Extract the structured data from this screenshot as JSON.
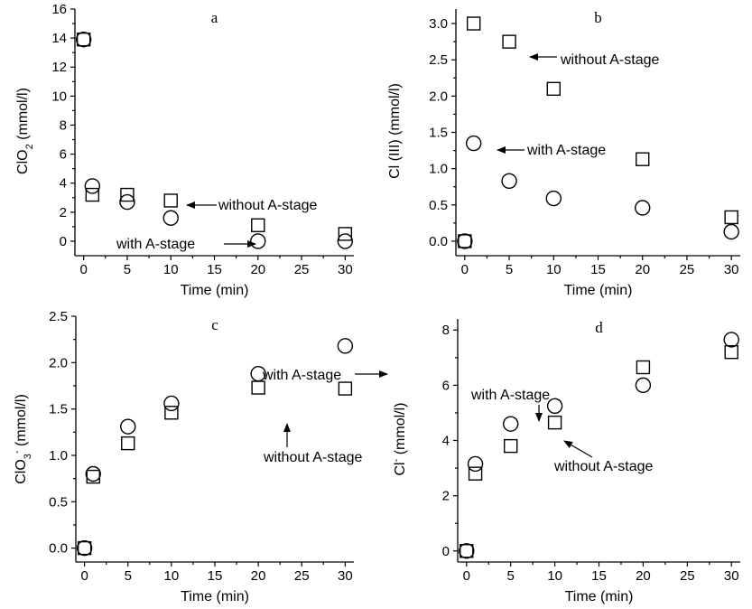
{
  "chart_data": [
    {
      "type": "scatter",
      "panel_label": "a",
      "xlabel": "Time (min)",
      "ylabel": "ClO",
      "ylabel_sub": "2",
      "ylabel_tail": " (mmol/l)",
      "xlim": [
        -1,
        31
      ],
      "ylim": [
        -1,
        16
      ],
      "xticks": [
        0,
        5,
        10,
        15,
        20,
        25,
        30
      ],
      "yticks": [
        0,
        2,
        4,
        6,
        8,
        10,
        12,
        14,
        16
      ],
      "series": [
        {
          "name": "without A-stage",
          "marker": "square",
          "x": [
            0,
            1,
            5,
            10,
            20,
            30
          ],
          "y": [
            13.9,
            3.2,
            3.2,
            2.8,
            1.1,
            0.5
          ]
        },
        {
          "name": "with A-stage",
          "marker": "circle",
          "x": [
            0,
            1,
            5,
            10,
            20,
            30
          ],
          "y": [
            13.9,
            3.8,
            2.7,
            1.6,
            0.0,
            0.0
          ]
        }
      ],
      "annotations": [
        {
          "text": "without A-stage"
        },
        {
          "text": "with A-stage"
        }
      ]
    },
    {
      "type": "scatter",
      "panel_label": "b",
      "xlabel": "Time (min)",
      "ylabel": "Cl (III) (mmol/l)",
      "xlim": [
        -1,
        31
      ],
      "ylim": [
        -0.2,
        3.2
      ],
      "xticks": [
        0,
        5,
        10,
        15,
        20,
        25,
        30
      ],
      "yticks": [
        0.0,
        0.5,
        1.0,
        1.5,
        2.0,
        2.5,
        3.0
      ],
      "tick_decimals": 1,
      "series": [
        {
          "name": "without A-stage",
          "marker": "square",
          "x": [
            0,
            1,
            5,
            10,
            20,
            30
          ],
          "y": [
            0.0,
            3.0,
            2.75,
            2.1,
            1.13,
            0.33
          ]
        },
        {
          "name": "with A-stage",
          "marker": "circle",
          "x": [
            0,
            1,
            5,
            10,
            20,
            30
          ],
          "y": [
            0.0,
            1.35,
            0.83,
            0.59,
            0.46,
            0.13
          ]
        }
      ],
      "annotations": [
        {
          "text": "without A-stage"
        },
        {
          "text": "with A-stage"
        }
      ]
    },
    {
      "type": "scatter",
      "panel_label": "c",
      "xlabel": "Time (min)",
      "ylabel": "ClO",
      "ylabel_sub": "3",
      "ylabel_sup": "-",
      "ylabel_tail": " (mmol/l)",
      "xlim": [
        -1,
        31
      ],
      "ylim": [
        -0.15,
        2.5
      ],
      "xticks": [
        0,
        5,
        10,
        15,
        20,
        25,
        30
      ],
      "yticks": [
        0.0,
        0.5,
        1.0,
        1.5,
        2.0,
        2.5
      ],
      "tick_decimals": 1,
      "series": [
        {
          "name": "without A-stage",
          "marker": "square",
          "x": [
            0,
            1,
            5,
            10,
            20,
            30
          ],
          "y": [
            0.0,
            0.77,
            1.13,
            1.46,
            1.73,
            1.72
          ]
        },
        {
          "name": "with A-stage",
          "marker": "circle",
          "x": [
            0,
            1,
            5,
            10,
            20,
            30
          ],
          "y": [
            0.0,
            0.8,
            1.31,
            1.56,
            1.88,
            2.18
          ]
        }
      ],
      "annotations": [
        {
          "text": "with A-stage"
        },
        {
          "text": "without A-stage"
        }
      ]
    },
    {
      "type": "scatter",
      "panel_label": "d",
      "xlabel": "Time (min)",
      "ylabel": "Cl",
      "ylabel_sup": "-",
      "ylabel_tail": " (mmol/l)",
      "xlim": [
        -1,
        31
      ],
      "ylim": [
        -0.4,
        8.4
      ],
      "xticks": [
        0,
        5,
        10,
        15,
        20,
        25,
        30
      ],
      "yticks": [
        0,
        2,
        4,
        6,
        8
      ],
      "series": [
        {
          "name": "without A-stage",
          "marker": "square",
          "x": [
            0,
            1,
            5,
            10,
            20,
            30
          ],
          "y": [
            0.0,
            2.8,
            3.8,
            4.65,
            6.65,
            7.2
          ]
        },
        {
          "name": "with A-stage",
          "marker": "circle",
          "x": [
            0,
            1,
            5,
            10,
            20,
            30
          ],
          "y": [
            0.0,
            3.15,
            4.6,
            5.25,
            6.0,
            7.65
          ]
        }
      ],
      "annotations": [
        {
          "text": "with A-stage"
        },
        {
          "text": "without A-stage"
        }
      ]
    }
  ]
}
